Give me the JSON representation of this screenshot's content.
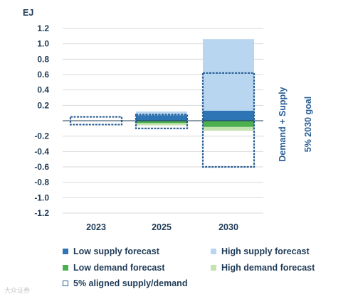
{
  "chart_data": {
    "type": "bar",
    "unit_label": "EJ",
    "categories": [
      "2023",
      "2025",
      "2030"
    ],
    "ylim": [
      -1.2,
      1.2
    ],
    "yticks": [
      1.2,
      1.0,
      0.8,
      0.6,
      0.4,
      0.2,
      -0.2,
      -0.4,
      -0.6,
      -0.8,
      -1.0,
      -1.2
    ],
    "ytick_labels": [
      "1.2",
      "1.0",
      "0.8",
      "0.6",
      "0.4",
      "0.2",
      "-0.2",
      "-0.4",
      "-0.6",
      "-0.8",
      "-1.0",
      "-1.2"
    ],
    "grid": true,
    "series": [
      {
        "name": "Low supply forecast",
        "color": "#2e75b6",
        "values": [
          0,
          0.07,
          0.13
        ]
      },
      {
        "name": "High supply forecast",
        "color": "#b8d6f0",
        "values": [
          0,
          0.12,
          1.06
        ]
      },
      {
        "name": "Low demand forecast",
        "color": "#4caf50",
        "values": [
          0,
          -0.03,
          -0.08
        ]
      },
      {
        "name": "High demand forecast",
        "color": "#c5e3b0",
        "values": [
          0,
          -0.06,
          -0.13
        ]
      },
      {
        "name": "5% aligned supply/demand",
        "color": "#2a5f95",
        "style": "dashed-outline",
        "ranges": [
          [
            -0.05,
            0.05
          ],
          [
            -0.1,
            0.08
          ],
          [
            -0.6,
            0.62
          ]
        ]
      }
    ],
    "side_labels": [
      "Demand + Supply",
      "5% 2030 goal"
    ]
  },
  "watermark": "大众证券"
}
